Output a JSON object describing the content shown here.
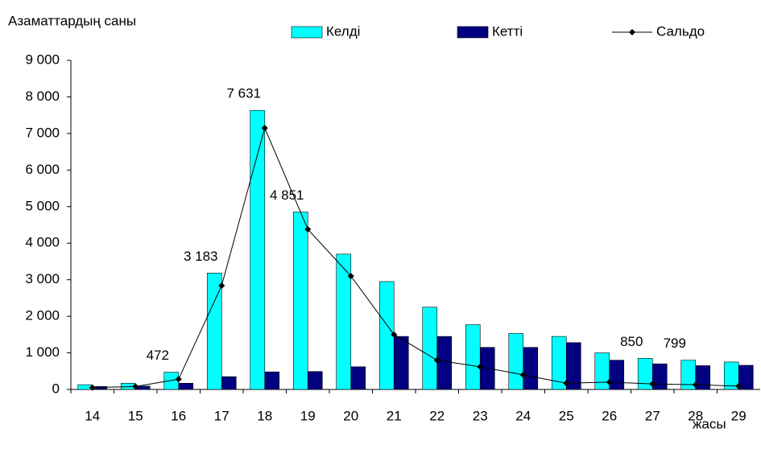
{
  "chart_data": {
    "type": "bar",
    "y_label": "Азаматтардың саны",
    "x_label": "жасы",
    "categories": [
      "14",
      "15",
      "16",
      "17",
      "18",
      "19",
      "20",
      "21",
      "22",
      "23",
      "24",
      "25",
      "26",
      "27",
      "28",
      "29"
    ],
    "series": [
      {
        "name": "Келді",
        "type": "bar",
        "color": "#00ffff",
        "values": [
          130,
          170,
          472,
          3183,
          7631,
          4851,
          3700,
          2950,
          2250,
          1770,
          1530,
          1450,
          1000,
          850,
          799,
          750
        ],
        "value_labels": [
          null,
          null,
          "472",
          "3 183",
          "7 631",
          "4 851",
          null,
          null,
          null,
          null,
          null,
          null,
          null,
          "850",
          "799",
          null
        ]
      },
      {
        "name": "Кетті",
        "type": "bar",
        "color": "#000080",
        "values": [
          80,
          90,
          170,
          350,
          480,
          490,
          620,
          1450,
          1450,
          1150,
          1150,
          1280,
          800,
          700,
          650,
          660
        ]
      },
      {
        "name": "Сальдо",
        "type": "line",
        "color": "#000000",
        "values": [
          50,
          80,
          280,
          2840,
          7150,
          4380,
          3100,
          1500,
          800,
          620,
          400,
          170,
          200,
          150,
          130,
          90
        ]
      }
    ],
    "ylim": [
      0,
      9000
    ],
    "yticks": [
      0,
      {
        "value": 1000,
        "label": "1 000"
      },
      {
        "value": 2000,
        "label": "2 000"
      },
      {
        "value": 3000,
        "label": "3 000"
      },
      {
        "value": 4000,
        "label": "4 000"
      },
      {
        "value": 5000,
        "label": "5 000"
      },
      {
        "value": 6000,
        "label": "6 000"
      },
      {
        "value": 7000,
        "label": "7 000"
      },
      {
        "value": 8000,
        "label": "8 000"
      },
      {
        "value": 9000,
        "label": "9 000"
      }
    ],
    "legend": "top"
  }
}
